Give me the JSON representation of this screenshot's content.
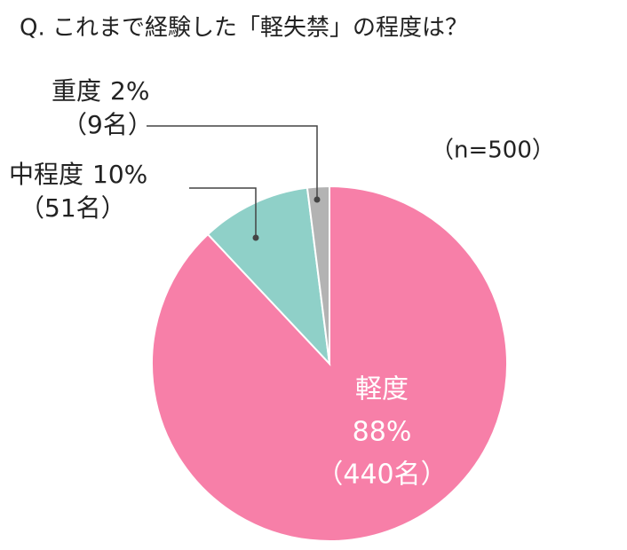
{
  "chart_data": {
    "type": "pie",
    "title": "Q. これまで経験した「軽失禁」の程度は？",
    "note": "（n=500）",
    "categories": [
      "軽度",
      "中程度",
      "重度"
    ],
    "values": [
      88,
      10,
      2
    ],
    "value_labels": [
      "88%",
      "10%",
      "2%"
    ],
    "count_labels": [
      "（440名）",
      "（51名）",
      "（9名）"
    ],
    "colors": [
      "#f77fa8",
      "#8fd0c8",
      "#b3b3b3"
    ]
  }
}
